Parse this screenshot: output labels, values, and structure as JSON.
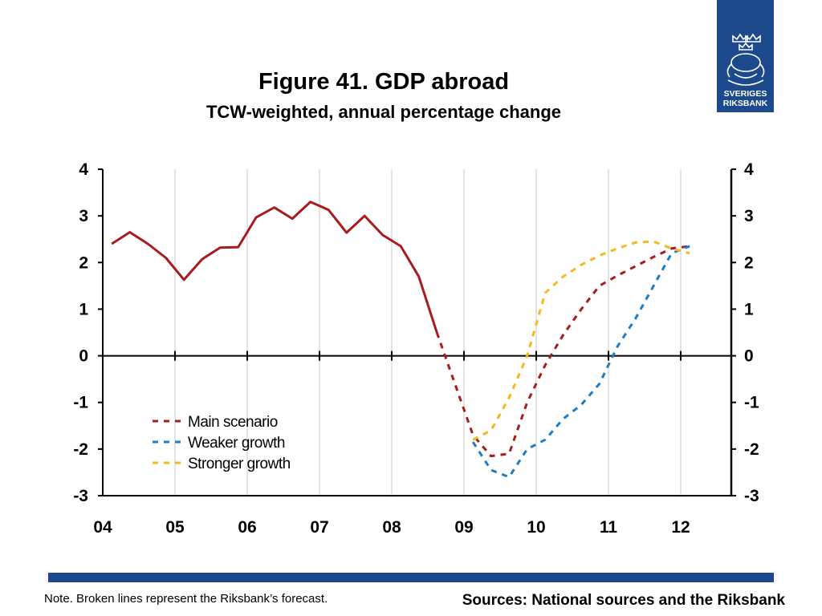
{
  "header": {
    "title": "Figure 41. GDP abroad",
    "subtitle": "TCW-weighted, annual percentage change"
  },
  "logo": {
    "line1": "SVERIGES",
    "line2": "RIKSBANK",
    "icon": "crown-emblem-icon",
    "color": "#1c4a8c"
  },
  "footer": {
    "note": "Note. Broken lines represent the Riksbank’s forecast.",
    "sources": "Sources: National sources and the Riksbank",
    "bar_color": "#1c4a8c"
  },
  "chart_data": {
    "type": "line",
    "xlim": [
      2004,
      2012.7
    ],
    "ylim": [
      -3,
      4
    ],
    "y_ticks": [
      4,
      3,
      2,
      1,
      0,
      -1,
      -2,
      -3
    ],
    "y_ticks_right": [
      4,
      3,
      2,
      1,
      0,
      -1,
      -2,
      -3
    ],
    "x_tick_labels": [
      {
        "label": "04",
        "x": 2004
      },
      {
        "label": "05",
        "x": 2005
      },
      {
        "label": "06",
        "x": 2006
      },
      {
        "label": "07",
        "x": 2007
      },
      {
        "label": "08",
        "x": 2008
      },
      {
        "label": "09",
        "x": 2009
      },
      {
        "label": "10",
        "x": 2010
      },
      {
        "label": "11",
        "x": 2011
      },
      {
        "label": "12",
        "x": 2012
      }
    ],
    "grid": "vertical",
    "legend_position": "bottom-left",
    "series": [
      {
        "name": "",
        "style": "solid",
        "color": "#a81c1c",
        "x": [
          2004.125,
          2004.375,
          2004.625,
          2004.875,
          2005.125,
          2005.375,
          2005.625,
          2005.875,
          2006.125,
          2006.375,
          2006.625,
          2006.875,
          2007.125,
          2007.375,
          2007.625,
          2007.875,
          2008.125,
          2008.375,
          2008.625
        ],
        "y": [
          2.4,
          2.65,
          2.4,
          2.1,
          1.63,
          2.07,
          2.32,
          2.33,
          2.97,
          3.18,
          2.94,
          3.3,
          3.13,
          2.64,
          3.0,
          2.59,
          2.35,
          1.7,
          0.5
        ]
      },
      {
        "name": "Main scenario",
        "style": "dashed",
        "color": "#a81c1c",
        "x": [
          2008.625,
          2008.875,
          2009.125,
          2009.375,
          2009.625,
          2009.875,
          2010.125,
          2010.375,
          2010.625,
          2010.875,
          2011.125,
          2011.375,
          2011.625,
          2011.875,
          2012.125
        ],
        "y": [
          0.5,
          -0.6,
          -1.7,
          -2.15,
          -2.1,
          -1.0,
          -0.2,
          0.45,
          1.0,
          1.5,
          1.72,
          1.92,
          2.12,
          2.3,
          2.35
        ]
      },
      {
        "name": "Weaker growth",
        "style": "dashed",
        "color": "#1f7cc4",
        "x": [
          2009.125,
          2009.375,
          2009.625,
          2009.875,
          2010.125,
          2010.375,
          2010.625,
          2010.875,
          2011.125,
          2011.375,
          2011.625,
          2011.875,
          2012.125
        ],
        "y": [
          -1.85,
          -2.45,
          -2.6,
          -2.0,
          -1.8,
          -1.35,
          -1.05,
          -0.6,
          0.2,
          0.8,
          1.5,
          2.2,
          2.35
        ]
      },
      {
        "name": "Stronger growth",
        "style": "dashed",
        "color": "#f5b81e",
        "x": [
          2009.125,
          2009.375,
          2009.625,
          2009.875,
          2010.125,
          2010.375,
          2010.625,
          2010.875,
          2011.125,
          2011.375,
          2011.625,
          2011.875,
          2012.125
        ],
        "y": [
          -1.8,
          -1.6,
          -0.9,
          0.0,
          1.35,
          1.7,
          1.95,
          2.15,
          2.3,
          2.43,
          2.45,
          2.3,
          2.2
        ]
      }
    ]
  }
}
